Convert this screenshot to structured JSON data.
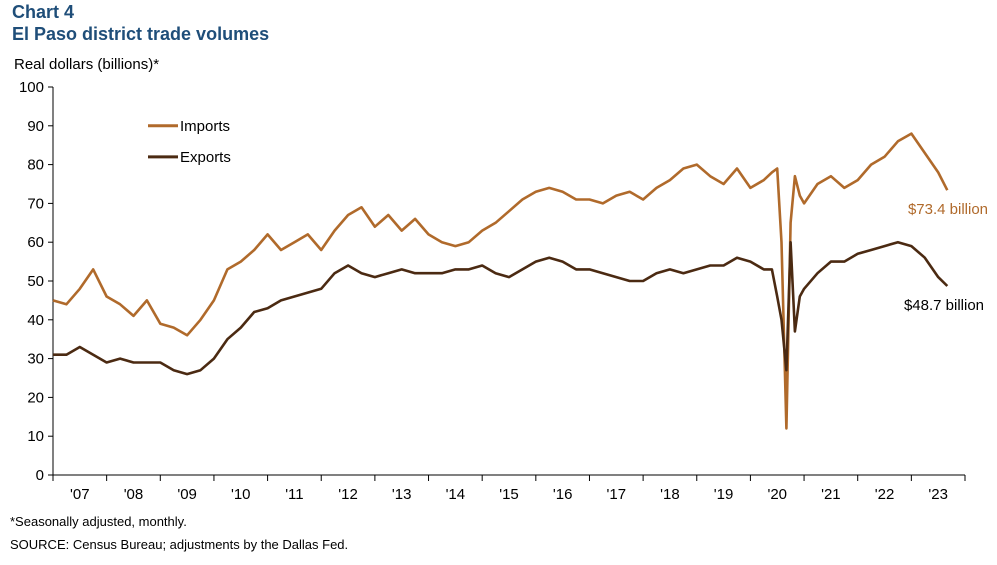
{
  "chart_data": {
    "type": "line",
    "title_line1": "Chart 4",
    "title_line2": "El Paso district trade volumes",
    "ylabel": "Real dollars (billions)*",
    "ylim": [
      0,
      100
    ],
    "yticks": [
      "0",
      "10",
      "20",
      "30",
      "40",
      "50",
      "60",
      "70",
      "80",
      "90",
      "100"
    ],
    "xlim": [
      2006.5,
      2023.5
    ],
    "xtick_labels": [
      "'07",
      "'08",
      "'09",
      "'10",
      "'11",
      "'12",
      "'13",
      "'14",
      "'15",
      "'16",
      "'17",
      "'18",
      "'19",
      "'20",
      "'21",
      "'22",
      "'23"
    ],
    "x": [
      2006.5,
      2006.75,
      2007.0,
      2007.25,
      2007.5,
      2007.75,
      2008.0,
      2008.25,
      2008.5,
      2008.75,
      2009.0,
      2009.25,
      2009.5,
      2009.75,
      2010.0,
      2010.25,
      2010.5,
      2010.75,
      2011.0,
      2011.25,
      2011.5,
      2011.75,
      2012.0,
      2012.25,
      2012.5,
      2012.75,
      2013.0,
      2013.25,
      2013.5,
      2013.75,
      2014.0,
      2014.25,
      2014.5,
      2014.75,
      2015.0,
      2015.25,
      2015.5,
      2015.75,
      2016.0,
      2016.25,
      2016.5,
      2016.75,
      2017.0,
      2017.25,
      2017.5,
      2017.75,
      2018.0,
      2018.25,
      2018.5,
      2018.75,
      2019.0,
      2019.25,
      2019.5,
      2019.75,
      2019.9,
      2020.0,
      2020.08,
      2020.17,
      2020.25,
      2020.33,
      2020.42,
      2020.5,
      2020.75,
      2021.0,
      2021.25,
      2021.5,
      2021.75,
      2022.0,
      2022.25,
      2022.5,
      2022.75,
      2023.0,
      2023.17
    ],
    "series": [
      {
        "name": "Imports",
        "color": "#b06a2b",
        "end_label": "$73.4 billion",
        "values": [
          45,
          44,
          48,
          53,
          46,
          44,
          41,
          45,
          39,
          38,
          36,
          40,
          45,
          53,
          55,
          58,
          62,
          58,
          60,
          62,
          58,
          63,
          67,
          69,
          64,
          67,
          63,
          66,
          62,
          60,
          59,
          60,
          63,
          65,
          68,
          71,
          73,
          74,
          73,
          71,
          71,
          70,
          72,
          73,
          71,
          74,
          76,
          79,
          80,
          77,
          75,
          79,
          74,
          76,
          78,
          79,
          60,
          12,
          65,
          77,
          72,
          70,
          75,
          77,
          74,
          76,
          80,
          82,
          86,
          88,
          83,
          78,
          73.4
        ]
      },
      {
        "name": "Exports",
        "color": "#4b2a12",
        "end_label": "$48.7 billion",
        "values": [
          31,
          31,
          33,
          31,
          29,
          30,
          29,
          29,
          29,
          27,
          26,
          27,
          30,
          35,
          38,
          42,
          43,
          45,
          46,
          47,
          48,
          52,
          54,
          52,
          51,
          52,
          53,
          52,
          52,
          52,
          53,
          53,
          54,
          52,
          51,
          53,
          55,
          56,
          55,
          53,
          53,
          52,
          51,
          50,
          50,
          52,
          53,
          52,
          53,
          54,
          54,
          56,
          55,
          53,
          53,
          46,
          40,
          27,
          60,
          37,
          46,
          48,
          52,
          55,
          55,
          57,
          58,
          59,
          60,
          59,
          56,
          51,
          48.7
        ]
      }
    ]
  },
  "footnote": "*Seasonally adjusted, monthly.",
  "source": "SOURCE: Census Bureau; adjustments by the Dallas Fed."
}
